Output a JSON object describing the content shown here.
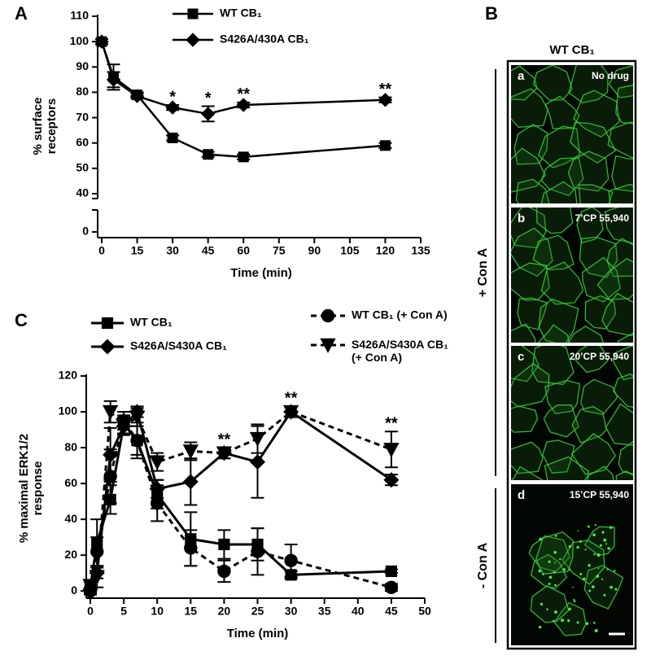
{
  "chart_data": [
    {
      "type": "line",
      "panel_label": "A",
      "xlabel": "Time (min)",
      "ylabel": "% surface receptors",
      "x": [
        0,
        5,
        15,
        30,
        45,
        60,
        120
      ],
      "series": [
        {
          "name": "WT CB₁",
          "color": "#000000",
          "marker": "square",
          "dashed": false,
          "values": [
            100,
            86,
            79,
            62,
            55.5,
            54.5,
            59
          ],
          "errors": [
            1,
            5,
            1,
            1,
            1,
            1,
            1
          ]
        },
        {
          "name": "S426A/430A CB₁",
          "color": "#000000",
          "marker": "diamond",
          "dashed": false,
          "values": [
            100,
            85,
            78.5,
            74,
            71.5,
            75,
            77
          ],
          "errors": [
            1,
            3,
            1,
            1,
            3,
            1,
            1
          ]
        }
      ],
      "xlim": [
        0,
        135
      ],
      "xticks": [
        0,
        15,
        30,
        45,
        60,
        75,
        90,
        105,
        120,
        135
      ],
      "ylim": [
        0,
        110
      ],
      "yticks": [
        0,
        40,
        50,
        60,
        70,
        80,
        90,
        100,
        110
      ],
      "y_break": [
        0,
        40
      ],
      "annotations": [
        {
          "x": 30,
          "text": "*"
        },
        {
          "x": 45,
          "text": "*"
        },
        {
          "x": 60,
          "text": "**"
        },
        {
          "x": 120,
          "text": "**"
        }
      ]
    },
    {
      "type": "line",
      "panel_label": "C",
      "xlabel": "Time (min)",
      "ylabel": "% maximal ERK1/2 response",
      "x": [
        0,
        1,
        3,
        5,
        7,
        10,
        15,
        20,
        25,
        30,
        45
      ],
      "series": [
        {
          "name": "WT CB₁",
          "color": "#000000",
          "marker": "square",
          "dashed": false,
          "values": [
            2,
            27,
            51,
            93,
            84,
            54,
            29,
            26,
            26,
            9,
            11
          ],
          "errors": [
            3,
            13,
            8,
            5,
            10,
            8,
            15,
            8,
            9,
            2,
            1
          ]
        },
        {
          "name": "S426A/S430A CB₁",
          "color": "#000000",
          "marker": "diamond",
          "dashed": false,
          "values": [
            1,
            10,
            76,
            92,
            100,
            57,
            61,
            77,
            72,
            100,
            62
          ],
          "errors": [
            1,
            3,
            15,
            5,
            3,
            5,
            13,
            3,
            20,
            3,
            3
          ]
        },
        {
          "name": "WT CB₁ (+ Con A)",
          "color": "#000000",
          "marker": "circle",
          "dashed": true,
          "values": [
            0,
            22,
            64,
            95,
            84,
            49,
            24,
            11,
            22,
            17,
            2
          ],
          "errors": [
            2,
            8,
            15,
            5,
            8,
            10,
            10,
            6,
            13,
            9,
            2
          ]
        },
        {
          "name": "S426A/S430A CB₁ (+ Con A)",
          "color": "#000000",
          "marker": "triangle-down",
          "dashed": true,
          "values": [
            3,
            8,
            100,
            92,
            97,
            72,
            78,
            77,
            85,
            100,
            79
          ],
          "errors": [
            2,
            6,
            6,
            5,
            5,
            5,
            5,
            3,
            8,
            3,
            10
          ]
        }
      ],
      "xlim": [
        0,
        50
      ],
      "xticks": [
        0,
        5,
        10,
        15,
        20,
        25,
        30,
        35,
        40,
        45,
        50
      ],
      "ylim": [
        -4,
        120
      ],
      "yticks": [
        0,
        20,
        40,
        60,
        80,
        100,
        120
      ],
      "annotations": [
        {
          "x": 20,
          "text": "**"
        },
        {
          "x": 30,
          "text": "**"
        },
        {
          "x": 45,
          "text": "**"
        }
      ]
    }
  ],
  "panel_b": {
    "panel_label": "B",
    "title": "WT CB₁",
    "groups": [
      {
        "label": "+ Con A"
      },
      {
        "label": "- Con A"
      }
    ],
    "images": [
      {
        "letter": "a",
        "label": "No drug"
      },
      {
        "letter": "b",
        "label": "7’CP 55,940"
      },
      {
        "letter": "c",
        "label": "20’CP 55,940"
      },
      {
        "letter": "d",
        "label": "15’CP 55,940"
      }
    ]
  }
}
